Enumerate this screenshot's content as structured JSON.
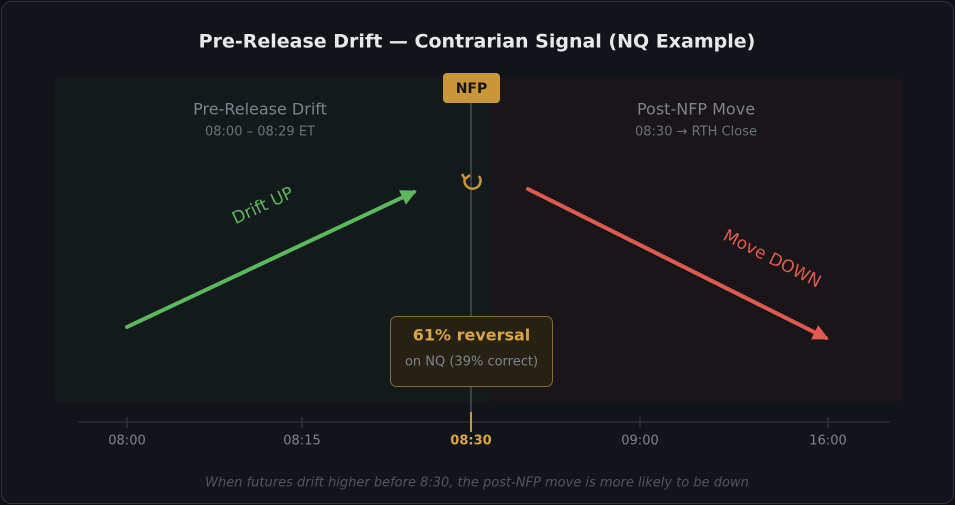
{
  "title": "Pre-Release Drift — Contrarian Signal (NQ Example)",
  "left_panel": {
    "title": "Pre-Release Drift",
    "subtitle": "08:00 – 08:29 ET",
    "arrow_label": "Drift UP"
  },
  "marker": {
    "label": "NFP"
  },
  "right_panel": {
    "title": "Post-NFP Move",
    "subtitle": "08:30 → RTH Close",
    "arrow_label": "Move DOWN"
  },
  "callout": {
    "headline": "61% reversal",
    "detail": "on NQ (39% correct)"
  },
  "axis_ticks": [
    "08:00",
    "08:15",
    "08:30",
    "09:00",
    "16:00"
  ],
  "footnote": "When futures drift higher before 8:30, the post-NFP move is more likely to be down"
}
